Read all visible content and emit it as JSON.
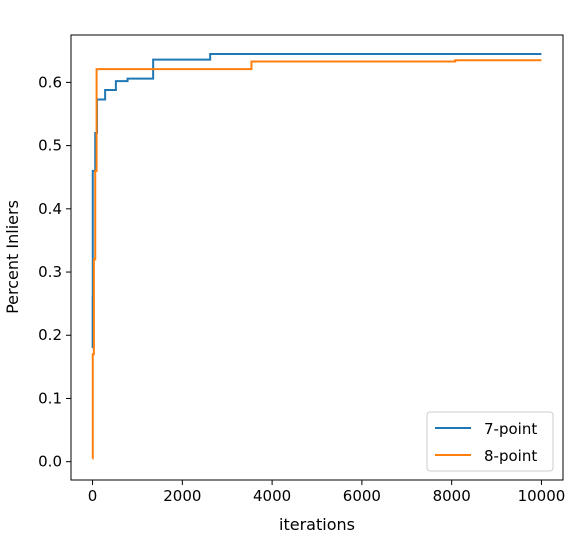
{
  "chart_data": {
    "type": "line",
    "xlabel": "iterations",
    "ylabel": "Percent Inliers",
    "xlim": [
      -480,
      10480
    ],
    "ylim": [
      -0.029,
      0.675
    ],
    "x_ticks": [
      0,
      2000,
      4000,
      6000,
      8000,
      10000
    ],
    "x_tick_labels": [
      "0",
      "2000",
      "4000",
      "6000",
      "8000",
      "10000"
    ],
    "y_ticks": [
      0.0,
      0.1,
      0.2,
      0.3,
      0.4,
      0.5,
      0.6
    ],
    "y_tick_labels": [
      "0.0",
      "0.1",
      "0.2",
      "0.3",
      "0.4",
      "0.5",
      "0.6"
    ],
    "grid": false,
    "legend_position": "lower-right",
    "step_plot": true,
    "series": [
      {
        "name": "7-point",
        "color": "#1f77b4",
        "points": [
          [
            0,
            0.18
          ],
          [
            2,
            0.26
          ],
          [
            5,
            0.46
          ],
          [
            60,
            0.52
          ],
          [
            100,
            0.573
          ],
          [
            280,
            0.588
          ],
          [
            520,
            0.602
          ],
          [
            780,
            0.606
          ],
          [
            1350,
            0.636
          ],
          [
            2620,
            0.645
          ],
          [
            10000,
            0.645
          ]
        ]
      },
      {
        "name": "8-point",
        "color": "#ff7f0e",
        "points": [
          [
            0,
            0.005
          ],
          [
            5,
            0.17
          ],
          [
            30,
            0.32
          ],
          [
            60,
            0.46
          ],
          [
            90,
            0.621
          ],
          [
            3540,
            0.633
          ],
          [
            8080,
            0.635
          ],
          [
            10000,
            0.635
          ]
        ]
      }
    ]
  }
}
